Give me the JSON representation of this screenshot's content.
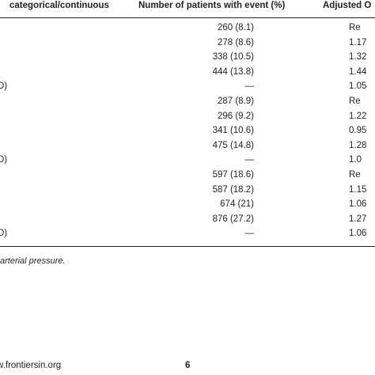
{
  "table": {
    "headers": {
      "col_type": "categorical/continuous",
      "col_events": "Number of patients with event (%)",
      "col_or": "Adjusted O"
    },
    "rows": [
      {
        "label": "",
        "events": "260 (8.1)",
        "or": "Re"
      },
      {
        "label": "",
        "events": "278 (8.6)",
        "or": "1.17"
      },
      {
        "label": "",
        "events": "338 (10.5)",
        "or": "1.32"
      },
      {
        "label": "",
        "events": "444 (13.8)",
        "or": "1.44"
      },
      {
        "label": "D)",
        "events": "—",
        "or": "1.05"
      },
      {
        "label": "",
        "events": "287 (8.9)",
        "or": "Re"
      },
      {
        "label": "",
        "events": "296 (9.2)",
        "or": "1.22"
      },
      {
        "label": "",
        "events": "341 (10.6)",
        "or": "0.95"
      },
      {
        "label": "",
        "events": "475 (14.8)",
        "or": "1.28"
      },
      {
        "label": "D)",
        "events": "—",
        "or": "1.0"
      },
      {
        "label": "",
        "events": "597 (18.6)",
        "or": "Re"
      },
      {
        "label": "",
        "events": "587 (18.2)",
        "or": "1.15"
      },
      {
        "label": "",
        "events": "674 (21)",
        "or": "1.06"
      },
      {
        "label": "",
        "events": "876 (27.2)",
        "or": "1.27"
      },
      {
        "label": "D)",
        "events": "—",
        "or": "1.06"
      }
    ]
  },
  "footnote": "arterial pressure.",
  "footer": {
    "url": "w.frontiersin.org",
    "page_number": "6"
  }
}
